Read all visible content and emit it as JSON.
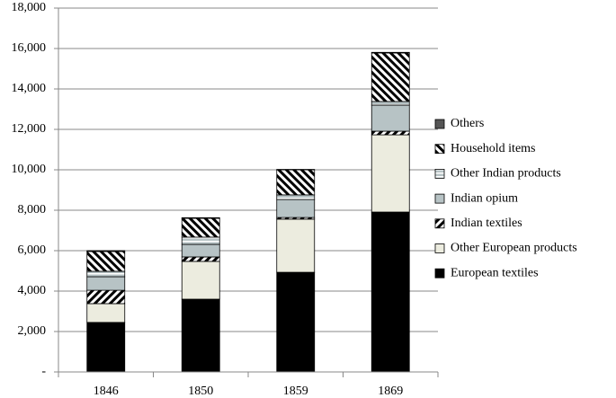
{
  "chart_data": {
    "type": "stacked-bar",
    "categories": [
      "1846",
      "1850",
      "1859",
      "1869"
    ],
    "series": [
      {
        "name": "European textiles",
        "color": "#000000",
        "hatch": "solid",
        "values": [
          2450,
          3600,
          4930,
          7910
        ]
      },
      {
        "name": "Other European products",
        "color": "#ececdf",
        "hatch": "solid",
        "values": [
          930,
          1870,
          2630,
          3820
        ]
      },
      {
        "name": "Indian textiles",
        "color": "#000000",
        "hatch": "forward-diagonal",
        "values": [
          660,
          220,
          80,
          180
        ]
      },
      {
        "name": "Indian opium",
        "color": "#b7c3c5",
        "hatch": "solid",
        "values": [
          670,
          620,
          890,
          1290
        ]
      },
      {
        "name": "Other Indian products",
        "color": "#b7c3c5",
        "hatch": "horizontal",
        "values": [
          270,
          360,
          230,
          180
        ]
      },
      {
        "name": "Household items",
        "color": "#000000",
        "hatch": "backward-diagonal",
        "values": [
          980,
          930,
          1240,
          2400
        ]
      },
      {
        "name": "Others",
        "color": "#555555",
        "hatch": "solid",
        "values": [
          40,
          30,
          20,
          30
        ]
      }
    ],
    "ylim": [
      0,
      18000
    ],
    "yticks": [
      {
        "value": 0,
        "label": "-"
      },
      {
        "value": 2000,
        "label": "2,000"
      },
      {
        "value": 4000,
        "label": "4,000"
      },
      {
        "value": 6000,
        "label": "6,000"
      },
      {
        "value": 8000,
        "label": "8,000"
      },
      {
        "value": 10000,
        "label": "10,000"
      },
      {
        "value": 12000,
        "label": "12,000"
      },
      {
        "value": 14000,
        "label": "14,000"
      },
      {
        "value": 16000,
        "label": "16,000"
      },
      {
        "value": 18000,
        "label": "18,000"
      }
    ],
    "grid": true,
    "legend": "right"
  }
}
